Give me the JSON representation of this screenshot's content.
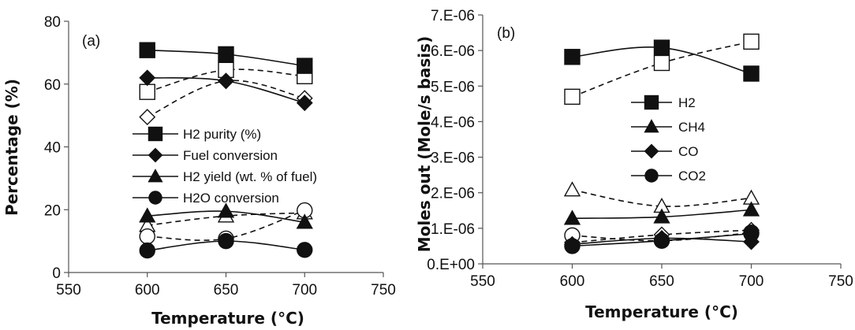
{
  "chart_data": [
    {
      "type": "line",
      "panel_label": "(a)",
      "xlabel": "Temperature (°C)",
      "ylabel": "Percentage (%)",
      "xlim": [
        550,
        750
      ],
      "ylim": [
        0,
        80
      ],
      "xticks": [
        550,
        600,
        650,
        700,
        750
      ],
      "yticks": [
        0,
        20,
        40,
        60,
        80
      ],
      "ytick_labels": [
        "0",
        "20",
        "40",
        "60",
        "80"
      ],
      "grid": false,
      "legend_position": "center-right",
      "series": [
        {
          "name": "H2 purity (%)",
          "marker": "square",
          "fill": "filled",
          "line": "solid",
          "x": [
            600,
            650,
            700
          ],
          "y": [
            70.8,
            69.5,
            65.8
          ]
        },
        {
          "name": "Fuel conversion",
          "marker": "diamond",
          "fill": "filled",
          "line": "solid",
          "x": [
            600,
            650,
            700
          ],
          "y": [
            62,
            61,
            54
          ]
        },
        {
          "name": "H2 yield (wt. % of fuel)",
          "marker": "triangle",
          "fill": "filled",
          "line": "solid",
          "x": [
            600,
            650,
            700
          ],
          "y": [
            18,
            19.5,
            16
          ]
        },
        {
          "name": "H2O conversion",
          "marker": "circle",
          "fill": "filled",
          "line": "solid",
          "x": [
            600,
            650,
            700
          ],
          "y": [
            7,
            10,
            7.2
          ]
        },
        {
          "marker": "square",
          "fill": "open",
          "line": "dashed",
          "x": [
            600,
            650,
            700
          ],
          "y": [
            57.5,
            64.5,
            62.5
          ]
        },
        {
          "marker": "diamond",
          "fill": "open",
          "line": "dashed",
          "x": [
            600,
            650,
            700
          ],
          "y": [
            49.5,
            61,
            55.5
          ]
        },
        {
          "marker": "triangle",
          "fill": "open",
          "line": "dashed",
          "x": [
            600,
            650,
            700
          ],
          "y": [
            15,
            18,
            19
          ]
        },
        {
          "marker": "circle",
          "fill": "open",
          "line": "dashed",
          "x": [
            600,
            650,
            700
          ],
          "y": [
            11.5,
            10.8,
            19.8
          ]
        }
      ]
    },
    {
      "type": "line",
      "panel_label": "(b)",
      "xlabel": "Temperature (°C)",
      "ylabel": "Moles out (Mole/s basis)",
      "xlim": [
        550,
        750
      ],
      "ylim": [
        0,
        7e-06
      ],
      "xticks": [
        550,
        600,
        650,
        700,
        750
      ],
      "yticks": [
        0,
        1e-06,
        2e-06,
        3e-06,
        4e-06,
        5e-06,
        6e-06,
        7e-06
      ],
      "ytick_labels": [
        "0.E+00",
        "1.E-06",
        "2.E-06",
        "3.E-06",
        "4.E-06",
        "5.E-06",
        "6.E-06",
        "7.E-06"
      ],
      "grid": false,
      "legend_position": "center",
      "series": [
        {
          "name": "H2",
          "marker": "square",
          "fill": "filled",
          "line": "solid",
          "x": [
            600,
            650,
            700
          ],
          "y": [
            5.82e-06,
            6.08e-06,
            5.35e-06
          ]
        },
        {
          "name": "CH4",
          "marker": "triangle",
          "fill": "filled",
          "line": "solid",
          "x": [
            600,
            650,
            700
          ],
          "y": [
            1.28e-06,
            1.32e-06,
            1.52e-06
          ]
        },
        {
          "name": "CO",
          "marker": "diamond",
          "fill": "filled",
          "line": "solid",
          "x": [
            600,
            650,
            700
          ],
          "y": [
            5.5e-07,
            7.2e-07,
            6.2e-07
          ]
        },
        {
          "name": "CO2",
          "marker": "circle",
          "fill": "filled",
          "line": "solid",
          "x": [
            600,
            650,
            700
          ],
          "y": [
            5e-07,
            6.5e-07,
            8.5e-07
          ]
        },
        {
          "marker": "square",
          "fill": "open",
          "line": "dashed",
          "x": [
            600,
            650,
            700
          ],
          "y": [
            4.7e-06,
            5.65e-06,
            6.25e-06
          ]
        },
        {
          "marker": "triangle",
          "fill": "open",
          "line": "dashed",
          "x": [
            600,
            650,
            700
          ],
          "y": [
            2.08e-06,
            1.62e-06,
            1.85e-06
          ]
        },
        {
          "marker": "diamond",
          "fill": "open",
          "line": "dashed",
          "x": [
            600,
            650,
            700
          ],
          "y": [
            6e-07,
            8.2e-07,
            9.5e-07
          ]
        },
        {
          "marker": "circle",
          "fill": "open",
          "line": "dashed",
          "x": [
            600,
            650,
            700
          ],
          "y": [
            8e-07,
            6.5e-07,
            8.8e-07
          ]
        }
      ]
    }
  ]
}
